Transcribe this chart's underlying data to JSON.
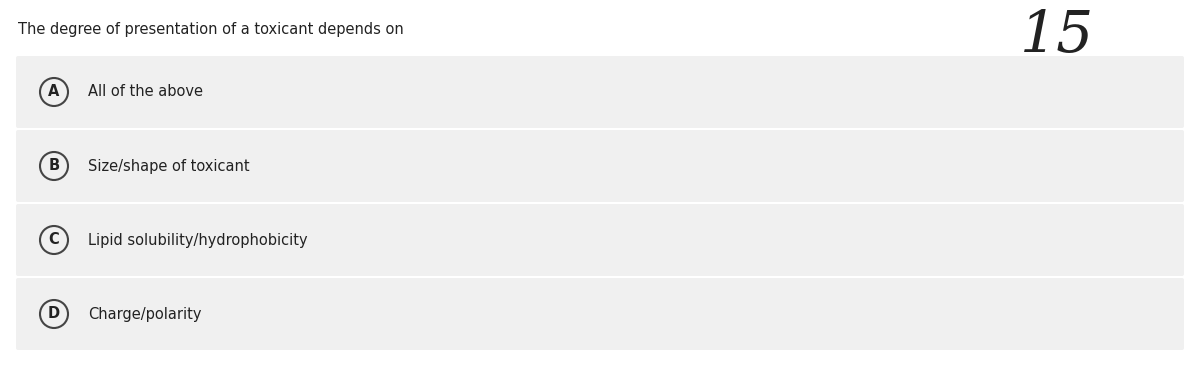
{
  "title": "The degree of presentation of a toxicant depends on",
  "question_number": "15",
  "options": [
    {
      "letter": "A",
      "text": "All of the above"
    },
    {
      "letter": "B",
      "text": "Size/shape of toxicant"
    },
    {
      "letter": "C",
      "text": "Lipid solubility/hydrophobicity"
    },
    {
      "letter": "D",
      "text": "Charge/polarity"
    }
  ],
  "bg_color": "#ffffff",
  "option_bg_color": "#f0f0f0",
  "text_color": "#222222",
  "circle_edge_color": "#444444",
  "title_fontsize": 10.5,
  "option_fontsize": 10.5,
  "number_fontsize": 42
}
